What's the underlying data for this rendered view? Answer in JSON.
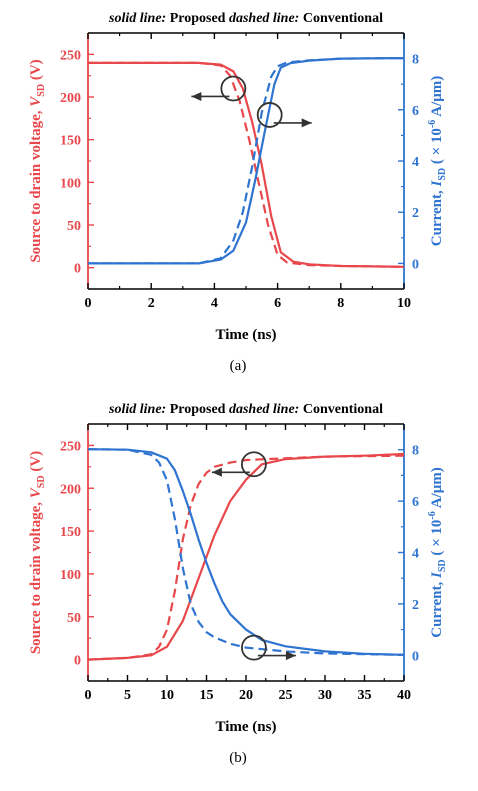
{
  "colors": {
    "voltage": "#e8474b",
    "current": "#2f74d0",
    "axis": "#000000"
  },
  "chart_data": [
    {
      "type": "line",
      "caption": "(a)",
      "title": {
        "solid_key": "solid line:",
        "solid_label": "Proposed",
        "dashed_key": "dashed line:",
        "dashed_label": "Conventional"
      },
      "xlabel": "Time (ns)",
      "ylabel_left": {
        "main": "Source to drain voltage, ",
        "var": "V",
        "sub": "SD",
        "unit": " (V)"
      },
      "ylabel_right": {
        "main": "Current, ",
        "var": "I",
        "sub": "SD",
        "pre": " ( × 10",
        "exp": "-6",
        "unit": " A/μm)"
      },
      "xlim": [
        0,
        10
      ],
      "ylim_left": [
        -25,
        275
      ],
      "ylim_right": [
        -1,
        9
      ],
      "xticks": [
        0,
        2,
        4,
        6,
        8,
        10
      ],
      "yticks_left": [
        0,
        50,
        100,
        150,
        200,
        250
      ],
      "yticks_right": [
        0,
        2,
        4,
        6,
        8
      ],
      "series": [
        {
          "name": "Proposed",
          "axis": "left",
          "style": "solid",
          "x": [
            0,
            3.5,
            4.2,
            4.6,
            4.9,
            5.2,
            5.5,
            5.8,
            6.1,
            6.5,
            7,
            8,
            10
          ],
          "y": [
            240,
            240,
            238,
            230,
            210,
            170,
            120,
            60,
            18,
            7,
            4,
            2,
            1
          ]
        },
        {
          "name": "Conventional",
          "axis": "left",
          "style": "dashed",
          "x": [
            0,
            3.5,
            4.2,
            4.5,
            4.8,
            5.1,
            5.4,
            5.7,
            6.0,
            6.3,
            7,
            8,
            10
          ],
          "y": [
            240,
            240,
            237,
            225,
            195,
            150,
            100,
            50,
            15,
            6,
            3,
            2,
            1
          ]
        },
        {
          "name": "Proposed",
          "axis": "right",
          "style": "solid",
          "x": [
            0,
            3.5,
            4.2,
            4.6,
            5.0,
            5.3,
            5.6,
            5.9,
            6.1,
            6.4,
            7,
            8,
            10
          ],
          "y": [
            0,
            0,
            0.15,
            0.5,
            1.6,
            3.3,
            5.2,
            7.0,
            7.65,
            7.82,
            7.92,
            8.0,
            8.02
          ]
        },
        {
          "name": "Conventional",
          "axis": "right",
          "style": "dashed",
          "x": [
            0,
            3.5,
            4.2,
            4.6,
            4.9,
            5.2,
            5.5,
            5.8,
            6.0,
            6.3,
            7,
            8,
            10
          ],
          "y": [
            0,
            0,
            0.2,
            0.9,
            2.0,
            3.8,
            5.9,
            7.3,
            7.7,
            7.85,
            7.93,
            8.0,
            8.02
          ]
        }
      ],
      "annotations": [
        {
          "x": 4.6,
          "y_axis": "left",
          "y": 210,
          "direction": "left"
        },
        {
          "x": 5.75,
          "y_axis": "right",
          "y": 5.8,
          "direction": "right"
        }
      ]
    },
    {
      "type": "line",
      "caption": "(b)",
      "title": {
        "solid_key": "solid line:",
        "solid_label": "Proposed",
        "dashed_key": "dashed line:",
        "dashed_label": "Conventional"
      },
      "xlabel": "Time (ns)",
      "ylabel_left": {
        "main": "Source to drain voltage, ",
        "var": "V",
        "sub": "SD",
        "unit": " (V)"
      },
      "ylabel_right": {
        "main": "Current, ",
        "var": "I",
        "sub": "SD",
        "pre": " ( × 10",
        "exp": "-6",
        "unit": " A/μm)"
      },
      "xlim": [
        0,
        40
      ],
      "ylim_left": [
        -25,
        275
      ],
      "ylim_right": [
        -1,
        9
      ],
      "xticks": [
        0,
        5,
        10,
        15,
        20,
        25,
        30,
        35,
        40
      ],
      "yticks_left": [
        0,
        50,
        100,
        150,
        200,
        250
      ],
      "yticks_right": [
        0,
        2,
        4,
        6,
        8
      ],
      "series": [
        {
          "name": "Proposed",
          "axis": "left",
          "style": "solid",
          "x": [
            0,
            5,
            8,
            10,
            12,
            14,
            16,
            18,
            20,
            22,
            25,
            30,
            35,
            40
          ],
          "y": [
            0,
            2,
            5,
            15,
            45,
            95,
            145,
            185,
            210,
            228,
            234,
            237,
            238,
            240
          ]
        },
        {
          "name": "Conventional",
          "axis": "left",
          "style": "dashed",
          "x": [
            0,
            5,
            8,
            9,
            10,
            11,
            12,
            13,
            14,
            15,
            16,
            18,
            20,
            25,
            30,
            40
          ],
          "y": [
            0,
            2,
            6,
            15,
            35,
            80,
            140,
            180,
            205,
            218,
            225,
            230,
            233,
            235,
            237,
            238
          ]
        },
        {
          "name": "Proposed",
          "axis": "right",
          "style": "solid",
          "x": [
            0,
            5,
            8,
            10,
            11,
            12,
            13,
            14,
            15,
            16,
            17,
            18,
            20,
            22,
            25,
            30,
            35,
            40
          ],
          "y": [
            8.02,
            8.0,
            7.9,
            7.65,
            7.2,
            6.4,
            5.5,
            4.5,
            3.6,
            2.8,
            2.1,
            1.6,
            1.0,
            0.6,
            0.35,
            0.15,
            0.06,
            0.02
          ]
        },
        {
          "name": "Conventional",
          "axis": "right",
          "style": "dashed",
          "x": [
            0,
            5,
            8,
            9,
            10,
            11,
            12,
            13,
            14,
            15,
            16,
            18,
            20,
            25,
            30,
            40
          ],
          "y": [
            8.02,
            8.0,
            7.8,
            7.5,
            6.8,
            5.3,
            3.4,
            2.0,
            1.3,
            0.9,
            0.7,
            0.45,
            0.3,
            0.15,
            0.07,
            0.02
          ]
        }
      ],
      "annotations": [
        {
          "x": 21,
          "y_axis": "left",
          "y": 228,
          "direction": "left"
        },
        {
          "x": 21,
          "y_axis": "right",
          "y": 0.3,
          "direction": "right"
        }
      ]
    }
  ]
}
